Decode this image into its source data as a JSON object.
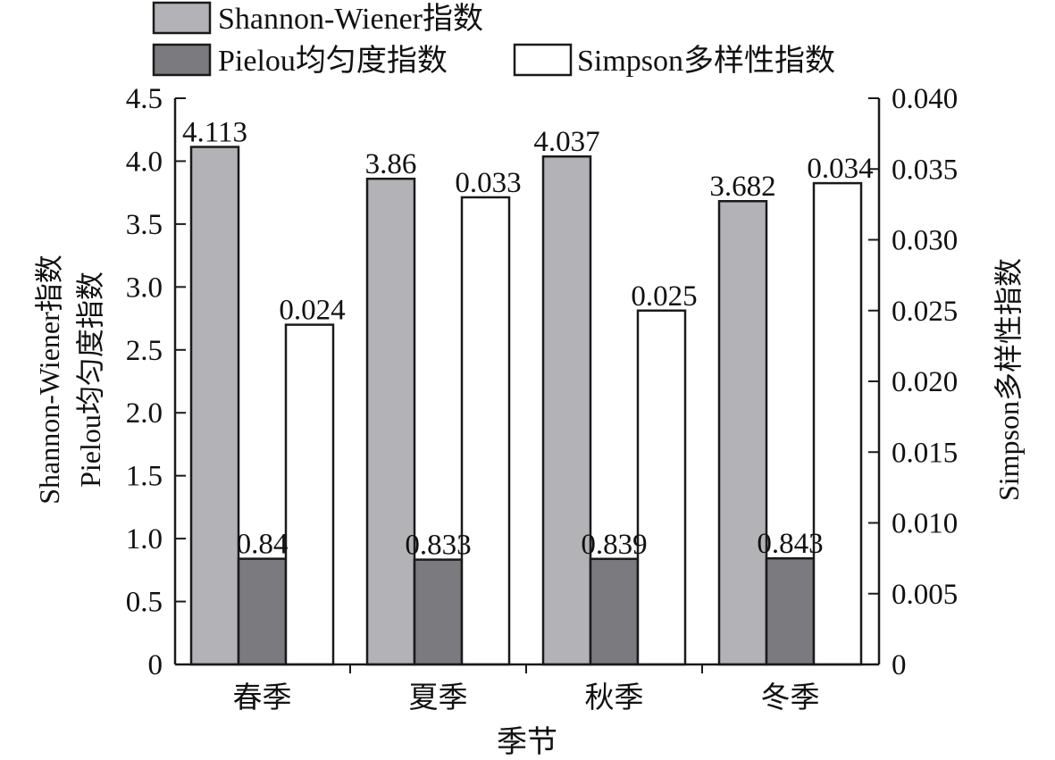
{
  "colors": {
    "shannon": "#b3b3b7",
    "pielou": "#7b7b7f",
    "simpson": "#ffffff",
    "stroke": "#1a1a1a"
  },
  "chart_data": {
    "type": "bar",
    "categories": [
      "春季",
      "夏季",
      "秋季",
      "冬季"
    ],
    "xlabel": "季节",
    "ylabel_left_line1": "Shannon-Wiener指数",
    "ylabel_left_line2": "Pielou均匀度指数",
    "ylabel_right": "Simpson多样性指数",
    "y_left": {
      "min": 0,
      "max": 4.5,
      "ticks": [
        "0",
        "0.5",
        "1.0",
        "1.5",
        "2.0",
        "2.5",
        "3.0",
        "3.5",
        "4.0",
        "4.5"
      ]
    },
    "y_right": {
      "min": 0,
      "max": 0.04,
      "ticks": [
        "0",
        "0.005",
        "0.010",
        "0.015",
        "0.020",
        "0.025",
        "0.030",
        "0.035",
        "0.040"
      ]
    },
    "legend_position": "top",
    "series": [
      {
        "name": "Shannon-Wiener指数",
        "axis": "left",
        "values": [
          4.113,
          3.86,
          4.037,
          3.682
        ],
        "labels": [
          "4.113",
          "3.86",
          "4.037",
          "3.682"
        ]
      },
      {
        "name": "Pielou均匀度指数",
        "axis": "left",
        "values": [
          0.84,
          0.833,
          0.839,
          0.843
        ],
        "labels": [
          "0.84",
          "0.833",
          "0.839",
          "0.843"
        ]
      },
      {
        "name": "Simpson多样性指数",
        "axis": "right",
        "values": [
          0.024,
          0.033,
          0.025,
          0.034
        ],
        "labels": [
          "0.024",
          "0.033",
          "0.025",
          "0.034"
        ]
      }
    ]
  }
}
